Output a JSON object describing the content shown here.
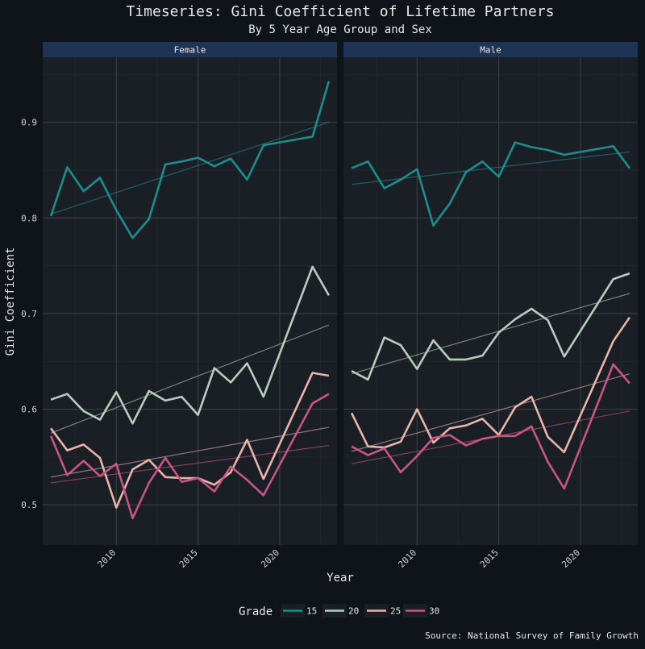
{
  "chart_data": {
    "type": "line",
    "title": "Timeseries: Gini Coefficient of Lifetime Partners",
    "subtitle": "By 5 Year Age Group and Sex",
    "xlabel": "Year",
    "ylabel": "Gini Coefficient",
    "caption": "Source: National Survey of Family Growth",
    "legend_title": "Grade",
    "legend_position": "bottom",
    "xlim": [
      2005.5,
      2023.5
    ],
    "ylim": [
      0.458,
      0.968
    ],
    "x_ticks": [
      2010,
      2015,
      2020
    ],
    "x_tick_labels": [
      "2010",
      "2015",
      "2020"
    ],
    "y_ticks": [
      0.5,
      0.6,
      0.7,
      0.8,
      0.9
    ],
    "y_tick_labels": [
      "0.5",
      "0.6",
      "0.7",
      "0.8",
      "0.9"
    ],
    "grid": true,
    "x": [
      2006,
      2007,
      2008,
      2009,
      2010,
      2011,
      2012,
      2013,
      2014,
      2015,
      2016,
      2017,
      2018,
      2019,
      2022,
      2023
    ],
    "series_meta": [
      {
        "name": "15",
        "color": "#1a8e8e"
      },
      {
        "name": "20",
        "color": "#b5cdb9"
      },
      {
        "name": "25",
        "color": "#e8b4aa"
      },
      {
        "name": "30",
        "color": "#c75585"
      }
    ],
    "panels": [
      {
        "label": "Female",
        "series": [
          {
            "name": "15",
            "values": [
              0.802,
              0.853,
              0.828,
              0.842,
              0.808,
              0.779,
              0.799,
              0.856,
              0.859,
              0.863,
              0.854,
              0.862,
              0.84,
              0.876,
              0.885,
              0.943
            ],
            "trend": [
              0.804,
              0.9
            ]
          },
          {
            "name": "20",
            "values": [
              0.61,
              0.616,
              0.598,
              0.589,
              0.618,
              0.585,
              0.619,
              0.609,
              0.613,
              0.594,
              0.643,
              0.628,
              0.648,
              0.613,
              0.749,
              0.719
            ],
            "trend": [
              0.575,
              0.688
            ]
          },
          {
            "name": "25",
            "values": [
              0.58,
              0.557,
              0.563,
              0.549,
              0.497,
              0.537,
              0.547,
              0.529,
              0.528,
              0.528,
              0.521,
              0.534,
              0.568,
              0.527,
              0.638,
              0.635
            ],
            "trend": [
              0.529,
              0.581
            ]
          },
          {
            "name": "30",
            "values": [
              0.572,
              0.531,
              0.546,
              0.53,
              0.543,
              0.486,
              0.523,
              0.549,
              0.524,
              0.528,
              0.514,
              0.54,
              0.526,
              0.51,
              0.606,
              0.616
            ],
            "trend": [
              0.523,
              0.562
            ]
          }
        ]
      },
      {
        "label": "Male",
        "series": [
          {
            "name": "15",
            "values": [
              0.852,
              0.859,
              0.831,
              0.84,
              0.851,
              0.792,
              0.815,
              0.848,
              0.859,
              0.843,
              0.879,
              0.874,
              0.871,
              0.866,
              0.875,
              0.852
            ],
            "trend": [
              0.835,
              0.869
            ]
          },
          {
            "name": "20",
            "values": [
              0.64,
              0.631,
              0.675,
              0.667,
              0.642,
              0.672,
              0.652,
              0.652,
              0.656,
              0.68,
              0.694,
              0.705,
              0.693,
              0.655,
              0.736,
              0.742
            ],
            "trend": [
              0.637,
              0.721
            ]
          },
          {
            "name": "25",
            "values": [
              0.596,
              0.561,
              0.56,
              0.566,
              0.6,
              0.565,
              0.58,
              0.583,
              0.59,
              0.573,
              0.602,
              0.613,
              0.571,
              0.555,
              0.671,
              0.696
            ],
            "trend": [
              0.556,
              0.637
            ]
          },
          {
            "name": "30",
            "values": [
              0.561,
              0.552,
              0.559,
              0.534,
              0.551,
              0.57,
              0.573,
              0.562,
              0.569,
              0.572,
              0.572,
              0.582,
              0.545,
              0.517,
              0.647,
              0.627
            ],
            "trend": [
              0.543,
              0.598
            ]
          }
        ]
      }
    ]
  }
}
